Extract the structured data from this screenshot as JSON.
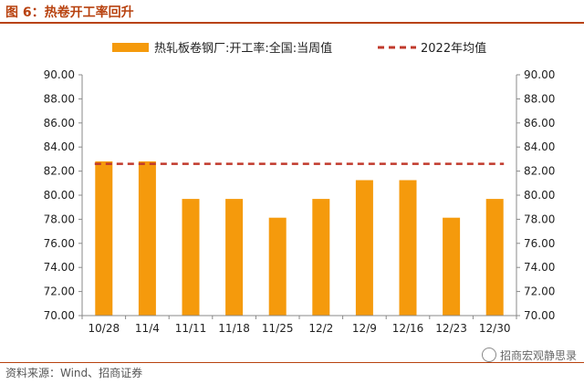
{
  "title": "图 6：热卷开工率回升",
  "source": "资料来源：Wind、招商证券",
  "watermark": "招商宏观静思录",
  "chart_data": {
    "type": "bar",
    "categories": [
      "10/28",
      "11/4",
      "11/11",
      "11/18",
      "11/25",
      "12/2",
      "12/9",
      "12/16",
      "12/23",
      "12/30"
    ],
    "series": [
      {
        "name": "热轧板卷钢厂:开工率:全国:当周值",
        "type": "bar",
        "values": [
          82.81,
          82.81,
          79.69,
          79.69,
          78.13,
          79.69,
          81.25,
          81.25,
          78.13,
          79.69
        ],
        "color": "#f59a0c"
      },
      {
        "name": "2022年均值",
        "type": "line",
        "style": "dashed",
        "value": 82.6,
        "color": "#c0392b"
      }
    ],
    "ylim": [
      70,
      90
    ],
    "yticks": [
      "70.00",
      "72.00",
      "74.00",
      "76.00",
      "78.00",
      "80.00",
      "82.00",
      "84.00",
      "86.00",
      "88.00",
      "90.00"
    ],
    "secondary_y": true,
    "grid": false,
    "legend_position": "top"
  }
}
